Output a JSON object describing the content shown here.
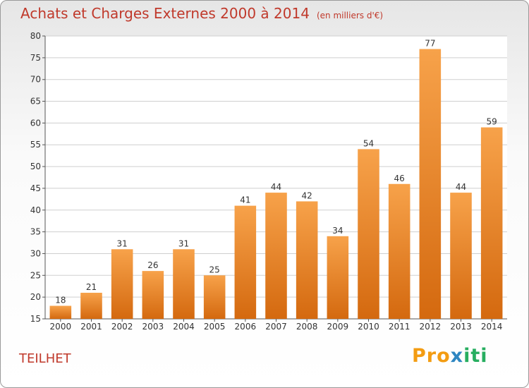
{
  "chart_data": {
    "type": "bar",
    "title": "Achats et Charges Externes 2000 à 2014",
    "subtitle": "(en milliers d'€)",
    "categories": [
      "2000",
      "2001",
      "2002",
      "2003",
      "2004",
      "2005",
      "2006",
      "2007",
      "2008",
      "2009",
      "2010",
      "2011",
      "2012",
      "2013",
      "2014"
    ],
    "values": [
      18,
      21,
      31,
      26,
      31,
      25,
      41,
      44,
      42,
      34,
      54,
      46,
      77,
      44,
      59
    ],
    "ylim": [
      15,
      80
    ],
    "yticks": [
      15,
      20,
      25,
      30,
      35,
      40,
      45,
      50,
      55,
      60,
      65,
      70,
      75,
      80
    ],
    "grid": true,
    "bar_color": "#f08a24"
  },
  "commune": "TEILHET",
  "logo": {
    "part1": "Pro",
    "part2": "x",
    "part3": "iti"
  }
}
